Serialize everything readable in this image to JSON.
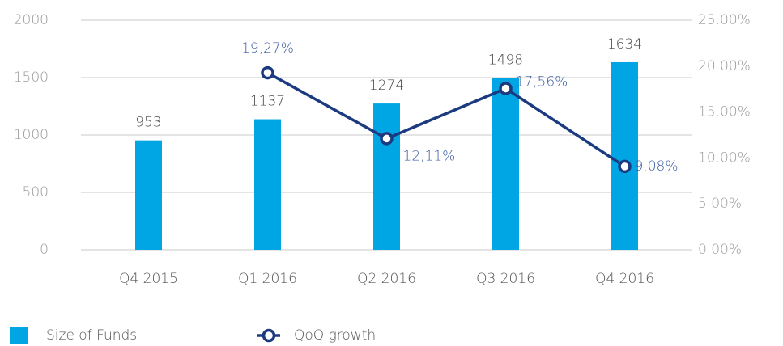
{
  "chart_data": {
    "type": "combo",
    "categories": [
      "Q4 2015",
      "Q1 2016",
      "Q2 2016",
      "Q3 2016",
      "Q4 2016"
    ],
    "series": [
      {
        "name": "Size of Funds",
        "type": "bar",
        "color": "#00a5e3",
        "values": [
          953,
          1137,
          1274,
          1498,
          1634
        ]
      },
      {
        "name": "QoQ growth",
        "type": "line",
        "axis": "y2",
        "color": "#1b3a80",
        "values": [
          null,
          19.27,
          12.11,
          17.56,
          9.08
        ],
        "value_labels": [
          null,
          "19,27%",
          "12,11%",
          "17,56%",
          "9,08%"
        ]
      }
    ],
    "ylim": [
      0,
      2000
    ],
    "yticks": [
      0,
      500,
      1000,
      1500,
      2000
    ],
    "y2lim": [
      0,
      25
    ],
    "y2ticks": [
      {
        "value": 0,
        "label": "0.00%"
      },
      {
        "value": 5,
        "label": "5.00%"
      },
      {
        "value": 10,
        "label": "10.00%"
      },
      {
        "value": 15,
        "label": "15.00%"
      },
      {
        "value": 20,
        "label": "20.00%"
      },
      {
        "value": 25,
        "label": "25.00%"
      }
    ],
    "grid": true
  }
}
